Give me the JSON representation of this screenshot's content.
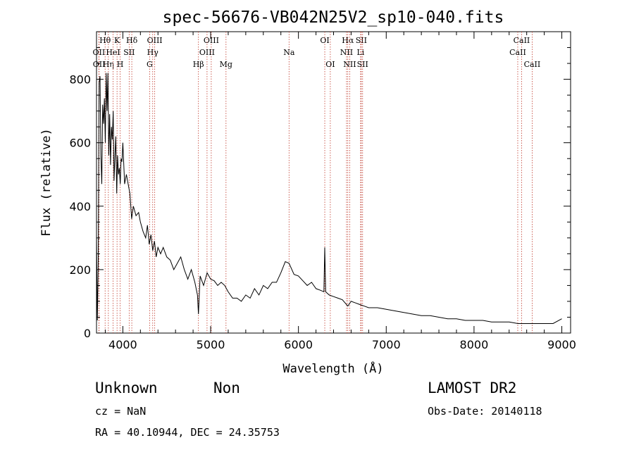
{
  "chart_data": {
    "type": "line",
    "title": "spec-56676-VB042N25V2_sp10-040.fits",
    "xlabel": "Wavelength (Å)",
    "ylabel": "Flux (relative)",
    "xlim": [
      3700,
      9100
    ],
    "ylim": [
      0,
      950
    ],
    "x_ticks": [
      "4000",
      "5000",
      "6000",
      "7000",
      "8000",
      "9000"
    ],
    "y_ticks": [
      "0",
      "200",
      "400",
      "600",
      "800"
    ],
    "grid": false,
    "series": [
      {
        "color": "#000000",
        "x": [
          3700,
          3710,
          3720,
          3730,
          3740,
          3750,
          3760,
          3770,
          3780,
          3790,
          3800,
          3810,
          3820,
          3830,
          3840,
          3850,
          3860,
          3870,
          3880,
          3890,
          3900,
          3910,
          3920,
          3930,
          3940,
          3950,
          3960,
          3970,
          3980,
          3990,
          4000,
          4020,
          4040,
          4060,
          4080,
          4100,
          4120,
          4150,
          4180,
          4200,
          4230,
          4260,
          4280,
          4300,
          4320,
          4340,
          4360,
          4380,
          4400,
          4430,
          4460,
          4500,
          4540,
          4580,
          4620,
          4660,
          4700,
          4740,
          4780,
          4820,
          4850,
          4861,
          4880,
          4920,
          4960,
          5000,
          5040,
          5080,
          5120,
          5160,
          5200,
          5250,
          5300,
          5350,
          5400,
          5450,
          5500,
          5550,
          5600,
          5650,
          5700,
          5750,
          5800,
          5850,
          5893,
          5950,
          6000,
          6050,
          6100,
          6150,
          6200,
          6250,
          6290,
          6300,
          6310,
          6350,
          6400,
          6450,
          6500,
          6563,
          6600,
          6650,
          6700,
          6750,
          6800,
          6900,
          7000,
          7100,
          7200,
          7300,
          7400,
          7500,
          7600,
          7700,
          7800,
          7900,
          8000,
          8100,
          8200,
          8300,
          8400,
          8500,
          8600,
          8700,
          8800,
          8900,
          9000
        ],
        "values": [
          310,
          40,
          230,
          790,
          810,
          560,
          470,
          720,
          660,
          740,
          600,
          820,
          700,
          820,
          560,
          690,
          530,
          650,
          610,
          700,
          480,
          560,
          620,
          440,
          560,
          500,
          520,
          470,
          550,
          540,
          600,
          470,
          500,
          470,
          440,
          360,
          400,
          370,
          380,
          350,
          320,
          300,
          340,
          280,
          310,
          260,
          290,
          240,
          270,
          250,
          270,
          240,
          230,
          200,
          220,
          240,
          200,
          170,
          200,
          160,
          120,
          60,
          180,
          150,
          190,
          170,
          165,
          150,
          160,
          150,
          130,
          110,
          110,
          100,
          120,
          110,
          140,
          120,
          150,
          140,
          160,
          160,
          190,
          225,
          220,
          185,
          180,
          165,
          150,
          160,
          140,
          135,
          130,
          270,
          130,
          120,
          115,
          110,
          105,
          85,
          100,
          95,
          90,
          85,
          80,
          80,
          75,
          70,
          65,
          60,
          55,
          55,
          50,
          45,
          45,
          40,
          40,
          40,
          35,
          35,
          35,
          30,
          30,
          30,
          30,
          30,
          45
        ]
      }
    ],
    "lines": [
      {
        "name": "OII",
        "x": 3727,
        "row": 2
      },
      {
        "name": "OII",
        "x": 3729,
        "row": 3
      },
      {
        "name": "Hθ",
        "x": 3798,
        "row": 1
      },
      {
        "name": "Hη",
        "x": 3835,
        "row": 3
      },
      {
        "name": "K",
        "x": 3934,
        "row": 1
      },
      {
        "name": "HeI",
        "x": 3889,
        "row": 2
      },
      {
        "name": "H",
        "x": 3969,
        "row": 3
      },
      {
        "name": "SII",
        "x": 4072,
        "row": 2
      },
      {
        "name": "Hδ",
        "x": 4102,
        "row": 1
      },
      {
        "name": "OIII",
        "x": 4363,
        "row": 1
      },
      {
        "name": "Hγ",
        "x": 4340,
        "row": 2
      },
      {
        "name": "G",
        "x": 4305,
        "row": 3
      },
      {
        "name": "Hβ",
        "x": 4861,
        "row": 3
      },
      {
        "name": "OIII",
        "x": 5007,
        "row": 1
      },
      {
        "name": "OIII",
        "x": 4959,
        "row": 2
      },
      {
        "name": "Mg",
        "x": 5175,
        "row": 3
      },
      {
        "name": "Na",
        "x": 5893,
        "row": 2
      },
      {
        "name": "OI",
        "x": 6300,
        "row": 1
      },
      {
        "name": "OI",
        "x": 6363,
        "row": 3
      },
      {
        "name": "Hα",
        "x": 6563,
        "row": 1
      },
      {
        "name": "NII",
        "x": 6548,
        "row": 2
      },
      {
        "name": "NII",
        "x": 6584,
        "row": 3
      },
      {
        "name": "SII",
        "x": 6716,
        "row": 1
      },
      {
        "name": "Li",
        "x": 6708,
        "row": 2
      },
      {
        "name": "SII",
        "x": 6731,
        "row": 3
      },
      {
        "name": "CaII",
        "x": 8542,
        "row": 1
      },
      {
        "name": "CaII",
        "x": 8498,
        "row": 2
      },
      {
        "name": "CaII",
        "x": 8662,
        "row": 3
      }
    ]
  },
  "info": {
    "class_label": "Unknown",
    "subclass_label": "Non",
    "survey": "LAMOST DR2",
    "cz": "cz = NaN",
    "obs_date": "Obs-Date: 20140118",
    "coords": "RA =  40.10944, DEC =  24.35753"
  }
}
